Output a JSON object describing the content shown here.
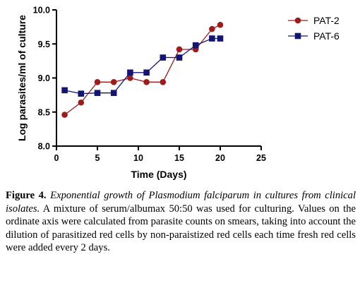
{
  "chart_data": {
    "type": "line",
    "xlabel": "Time (Days)",
    "ylabel": "Log parasites/ml of culture",
    "xlim": [
      0,
      25
    ],
    "ylim": [
      8.0,
      10.0
    ],
    "xticks": [
      "0",
      "5",
      "10",
      "15",
      "20",
      "25"
    ],
    "yticks": [
      "8.0",
      "8.5",
      "9.0",
      "9.5",
      "10.0"
    ],
    "grid": false,
    "legend_position": "top-right",
    "series": [
      {
        "name": "PAT-2",
        "color": "#9e1b1b",
        "marker": "circle",
        "x": [
          1,
          3,
          5,
          7,
          9,
          11,
          13,
          15,
          17,
          19,
          20
        ],
        "y": [
          8.46,
          8.64,
          8.94,
          8.94,
          9.0,
          8.94,
          8.94,
          9.42,
          9.42,
          9.72,
          9.78
        ]
      },
      {
        "name": "PAT-6",
        "color": "#141473",
        "marker": "square",
        "x": [
          1,
          3,
          5,
          7,
          9,
          11,
          13,
          15,
          17,
          19,
          20
        ],
        "y": [
          8.82,
          8.77,
          8.78,
          8.78,
          9.08,
          9.08,
          9.3,
          9.3,
          9.48,
          9.58,
          9.58
        ]
      }
    ]
  },
  "caption": {
    "label": "Figure 4.",
    "title": "Exponential growth of Plasmodium falciparum in cultures from clinical isolates.",
    "body": "A mixture of serum/albumax 50:50 was used for culturing. Values on the ordinate axis were calculated from parasite counts on smears, taking into account the dilution of parasitized red cells by non-paraistized red cells each time fresh red cells were added every 2 days."
  }
}
